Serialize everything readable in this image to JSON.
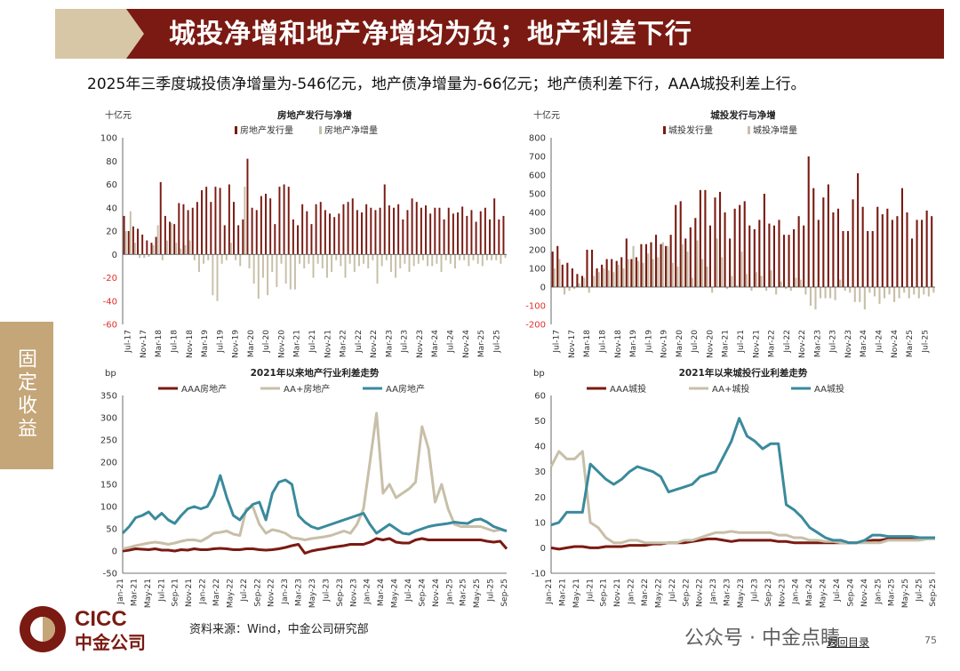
{
  "header": {
    "title": "城投净增和地产净增均为负；地产利差下行",
    "subtitle": "2025年三季度城投债净增量为-546亿元，地产债净增量为-66亿元；地产债利差下行，AAA城投利差上行。"
  },
  "side_tab": {
    "label": "固定收益"
  },
  "footer": {
    "source": "资料来源：Wind，中金公司研究部",
    "logo_en": "CICC",
    "logo_cn": "中金公司",
    "watermark": "公众号 · 中金点睛",
    "back_link": "返回目录",
    "page_number": "75"
  },
  "colors": {
    "dark_red": "#7a1a12",
    "beige": "#c8bfa8",
    "teal": "#3a8a9c",
    "tan": "#c4a678"
  },
  "chart_data": [
    {
      "type": "bar",
      "title": "房地产发行与净增",
      "unit_label": "十亿元",
      "ylim": [
        -60,
        100
      ],
      "yticks": [
        -60,
        -40,
        -20,
        0,
        20,
        40,
        60,
        80,
        100
      ],
      "negative_ticks_red": true,
      "legend": [
        "房地产发行量",
        "房地产净增量"
      ],
      "series_colors": [
        "#7a1a12",
        "#c8bfa8"
      ],
      "xticks": [
        "Jul-17",
        "Nov-17",
        "Mar-18",
        "Jul-18",
        "Nov-18",
        "Mar-19",
        "Jul-19",
        "Nov-19",
        "Mar-20",
        "Jul-20",
        "Nov-20",
        "Mar-21",
        "Jul-21",
        "Nov-21",
        "Mar-22",
        "Jul-22",
        "Nov-22",
        "Mar-23",
        "Jul-23",
        "Nov-23",
        "Mar-24",
        "Jul-24",
        "Nov-24",
        "Mar-25",
        "Jul-25"
      ],
      "series": [
        {
          "name": "房地产发行量",
          "values": [
            33,
            20,
            24,
            22,
            17,
            12,
            10,
            15,
            62,
            33,
            28,
            26,
            44,
            43,
            38,
            40,
            45,
            55,
            58,
            45,
            58,
            57,
            25,
            60,
            45,
            25,
            30,
            82,
            40,
            38,
            50,
            52,
            48,
            26,
            58,
            60,
            58,
            30,
            25,
            43,
            37,
            26,
            43,
            45,
            38,
            35,
            32,
            35,
            43,
            45,
            48,
            38,
            36,
            43,
            40,
            38,
            40,
            60,
            42,
            40,
            43,
            30,
            38,
            48,
            45,
            40,
            42,
            35,
            40,
            40,
            30,
            40,
            35,
            36,
            41,
            33,
            38,
            28,
            37,
            40,
            30,
            48,
            30,
            33
          ]
        },
        {
          "name": "房地产净增量",
          "values": [
            20,
            37,
            10,
            -3,
            -3,
            -2,
            8,
            25,
            -5,
            12,
            27,
            10,
            5,
            8,
            12,
            -5,
            -15,
            -8,
            -5,
            -35,
            -40,
            -8,
            -5,
            10,
            -5,
            -10,
            58,
            -12,
            -25,
            -38,
            -20,
            -35,
            -15,
            -28,
            -8,
            -25,
            -30,
            -30,
            -8,
            -12,
            -8,
            -20,
            -8,
            -12,
            -20,
            -15,
            -5,
            -10,
            -20,
            -8,
            -15,
            -10,
            -8,
            -12,
            -5,
            -25,
            -10,
            -5,
            -15,
            -20,
            -12,
            -8,
            -15,
            -10,
            -8,
            -5,
            -10,
            -10,
            -8,
            -15,
            -5,
            -8,
            -12,
            -5,
            -5,
            -10,
            -5,
            -8,
            -10,
            -5,
            -5,
            -5,
            -8,
            -3
          ]
        }
      ]
    },
    {
      "type": "bar",
      "title": "城投发行与净增",
      "unit_label": "十亿元",
      "ylim": [
        -200,
        800
      ],
      "yticks": [
        -200,
        -100,
        0,
        100,
        200,
        300,
        400,
        500,
        600,
        700,
        800
      ],
      "negative_ticks_red": true,
      "legend": [
        "城投发行量",
        "城投净增量"
      ],
      "series_colors": [
        "#7a1a12",
        "#c8bfa8"
      ],
      "xticks": [
        "Jul-17",
        "Nov-17",
        "Mar-18",
        "Jul-18",
        "Nov-18",
        "Mar-19",
        "Jul-19",
        "Nov-19",
        "Mar-20",
        "Jul-20",
        "Nov-20",
        "Mar-21",
        "Jul-21",
        "Nov-21",
        "Mar-22",
        "Jul-22",
        "Nov-22",
        "Mar-23",
        "Jul-23",
        "Nov-23",
        "Mar-24",
        "Jul-24",
        "Nov-24",
        "Mar-25",
        "Jul-25"
      ],
      "series": [
        {
          "name": "城投发行量",
          "values": [
            190,
            220,
            120,
            130,
            100,
            70,
            60,
            200,
            200,
            100,
            120,
            150,
            150,
            140,
            160,
            260,
            150,
            160,
            230,
            230,
            240,
            280,
            230,
            220,
            280,
            440,
            460,
            260,
            320,
            370,
            520,
            520,
            330,
            480,
            510,
            400,
            260,
            420,
            440,
            460,
            330,
            310,
            360,
            500,
            340,
            330,
            360,
            280,
            280,
            310,
            380,
            330,
            700,
            530,
            360,
            480,
            550,
            400,
            420,
            300,
            300,
            470,
            610,
            430,
            300,
            300,
            430,
            390,
            420,
            360,
            380,
            530,
            400,
            260,
            360,
            360,
            410,
            380
          ]
        },
        {
          "name": "城投净增量",
          "values": [
            100,
            150,
            -40,
            -20,
            -10,
            20,
            50,
            -30,
            60,
            80,
            100,
            90,
            80,
            120,
            100,
            150,
            220,
            140,
            130,
            180,
            150,
            160,
            240,
            220,
            130,
            110,
            230,
            190,
            50,
            250,
            150,
            110,
            -30,
            260,
            160,
            -10,
            60,
            10,
            190,
            70,
            -20,
            80,
            60,
            -20,
            90,
            -40,
            30,
            -10,
            -20,
            50,
            40,
            -40,
            -100,
            -120,
            -60,
            -60,
            -60,
            -70,
            40,
            -20,
            -30,
            -80,
            -80,
            -120,
            -30,
            -50,
            -90,
            -60,
            -40,
            -80,
            -60,
            -30,
            -60,
            -40,
            -60,
            -40,
            -50,
            -30
          ]
        }
      ]
    },
    {
      "type": "line",
      "title": "2021年以来地产行业利差走势",
      "unit_label": "bp",
      "ylim": [
        -50,
        350
      ],
      "yticks": [
        -50,
        0,
        50,
        100,
        150,
        200,
        250,
        300,
        350
      ],
      "xticks": [
        "Jan-21",
        "Mar-21",
        "May-21",
        "Jul-21",
        "Sep-21",
        "Nov-21",
        "Jan-22",
        "Mar-22",
        "May-22",
        "Jul-22",
        "Sep-22",
        "Nov-22",
        "Jan-23",
        "Mar-23",
        "May-23",
        "Jul-23",
        "Sep-23",
        "Nov-23",
        "Jan-24",
        "Mar-24",
        "May-24",
        "Jul-24",
        "Sep-24",
        "Nov-24",
        "Jan-25",
        "Mar-25",
        "May-25",
        "Jul-25",
        "Sep-25"
      ],
      "legend": [
        "AAA房地产",
        "AA+房地产",
        "AA房地产"
      ],
      "series": [
        {
          "name": "AAA房地产",
          "color": "#7a1a12",
          "values": [
            0,
            2,
            5,
            4,
            3,
            5,
            2,
            2,
            0,
            3,
            2,
            5,
            3,
            3,
            5,
            6,
            5,
            3,
            3,
            5,
            5,
            3,
            2,
            3,
            5,
            8,
            12,
            15,
            -5,
            0,
            3,
            5,
            8,
            10,
            12,
            15,
            15,
            15,
            20,
            28,
            25,
            28,
            20,
            18,
            18,
            25,
            28,
            25,
            25,
            25,
            25,
            25,
            25,
            25,
            25,
            25,
            22,
            20,
            22,
            5
          ]
        },
        {
          "name": "AA+房地产",
          "color": "#c8bfa8",
          "values": [
            5,
            8,
            12,
            15,
            18,
            20,
            18,
            15,
            18,
            22,
            25,
            25,
            22,
            30,
            40,
            42,
            45,
            38,
            35,
            95,
            100,
            60,
            40,
            48,
            45,
            40,
            30,
            28,
            25,
            28,
            30,
            32,
            35,
            40,
            45,
            40,
            60,
            95,
            200,
            310,
            130,
            150,
            120,
            130,
            140,
            155,
            280,
            230,
            110,
            150,
            95,
            60,
            55,
            55,
            55,
            55,
            50,
            45,
            48,
            45
          ]
        },
        {
          "name": "AA房地产",
          "color": "#3a8a9c",
          "values": [
            40,
            55,
            75,
            80,
            88,
            72,
            85,
            70,
            62,
            80,
            95,
            100,
            95,
            100,
            125,
            170,
            120,
            80,
            70,
            90,
            105,
            110,
            70,
            130,
            155,
            160,
            150,
            80,
            65,
            55,
            50,
            55,
            60,
            65,
            70,
            75,
            80,
            85,
            60,
            40,
            50,
            60,
            50,
            40,
            38,
            45,
            50,
            55,
            58,
            60,
            62,
            65,
            63,
            62,
            70,
            72,
            65,
            55,
            50,
            45
          ]
        }
      ]
    },
    {
      "type": "line",
      "title": "2021年以来城投行业利差走势",
      "unit_label": "bp",
      "ylim": [
        -10,
        60
      ],
      "yticks": [
        -10,
        0,
        10,
        20,
        30,
        40,
        50,
        60
      ],
      "xticks": [
        "Jan-21",
        "Mar-21",
        "May-21",
        "Jul-21",
        "Sep-21",
        "Nov-21",
        "Jan-22",
        "Mar-22",
        "May-22",
        "Jul-22",
        "Sep-22",
        "Nov-22",
        "Jan-23",
        "Mar-23",
        "May-23",
        "Jul-23",
        "Sep-23",
        "Nov-23",
        "Jan-24",
        "Mar-24",
        "May-24",
        "Jul-24",
        "Sep-24",
        "Nov-24",
        "Jan-25",
        "Mar-25",
        "May-25",
        "Jul-25",
        "Sep-25"
      ],
      "legend": [
        "AAA城投",
        "AA+城投",
        "AA城投"
      ],
      "series": [
        {
          "name": "AAA城投",
          "color": "#7a1a12",
          "values": [
            0,
            -0.5,
            0,
            0.5,
            0.5,
            0,
            0,
            0.5,
            0.5,
            0.5,
            1,
            1,
            1,
            1.5,
            1.5,
            2,
            2,
            2,
            2.5,
            3,
            3.5,
            3.5,
            3,
            2.5,
            3,
            3,
            3,
            3,
            3,
            2.5,
            2.5,
            2,
            2,
            2,
            2,
            2,
            2,
            2,
            2,
            2,
            2.5,
            3,
            3,
            3.5,
            4,
            4,
            4,
            4,
            4,
            4
          ]
        },
        {
          "name": "AA+城投",
          "color": "#c8bfa8",
          "values": [
            32,
            38,
            35,
            35,
            38,
            10,
            8,
            4,
            2,
            2,
            3,
            3,
            2,
            2,
            2,
            2,
            2,
            3,
            3,
            4,
            5,
            6,
            6,
            6.5,
            6,
            6,
            6,
            6,
            6,
            5,
            5,
            4,
            4,
            3,
            3,
            2.5,
            2.5,
            2,
            2,
            2,
            2,
            2,
            2,
            3,
            3,
            3,
            3,
            3,
            3.5,
            3.5
          ]
        },
        {
          "name": "AA城投",
          "color": "#3a8a9c",
          "values": [
            9,
            10,
            14,
            14,
            14,
            33,
            30,
            27,
            25,
            27,
            30,
            32,
            31,
            30,
            28,
            22,
            23,
            24,
            25,
            28,
            29,
            30,
            36,
            42,
            51,
            44,
            42,
            39,
            41,
            41,
            17,
            15,
            12,
            8,
            6,
            4,
            3,
            3,
            2,
            2,
            3,
            5,
            5,
            4.5,
            4.5,
            4.5,
            4.5,
            4,
            4,
            4
          ]
        }
      ]
    }
  ]
}
